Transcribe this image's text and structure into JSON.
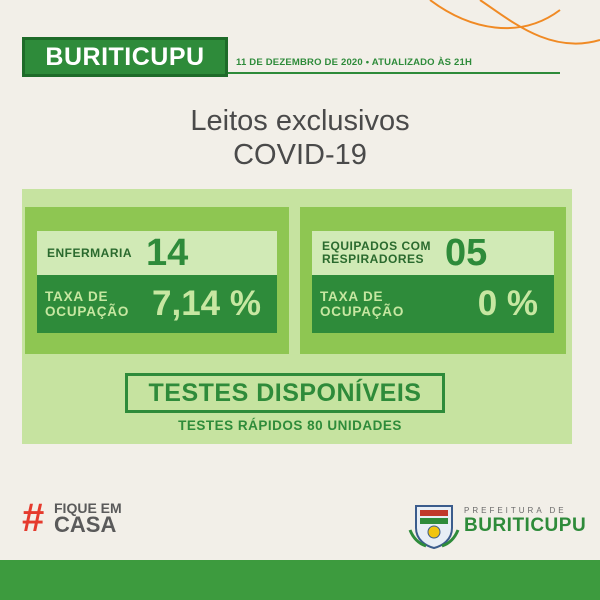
{
  "header": {
    "city": "BURITICUPU",
    "date_line": "11 DE DEZEMBRO DE 2020 • ATUALIZADO ÀS 21H"
  },
  "title": {
    "line1": "Leitos exclusivos",
    "line2": "COVID-19"
  },
  "cards": [
    {
      "label": "ENFERMARIA",
      "value": "14",
      "rate_label_line1": "TAXA DE",
      "rate_label_line2": "OCUPAÇÃO",
      "rate_value": "7,14 %"
    },
    {
      "label_line1": "EQUIPADOS COM",
      "label_line2": "RESPIRADORES",
      "value": "05",
      "rate_label_line1": "TAXA DE",
      "rate_label_line2": "OCUPAÇÃO",
      "rate_value": "0 %"
    }
  ],
  "tests": {
    "title": "TESTES DISPONÍVEIS",
    "subtitle": "TESTES RÁPIDOS 80 UNIDADES"
  },
  "hashtag": {
    "symbol": "#",
    "line1": "FIQUE EM",
    "line2": "CASA"
  },
  "logo": {
    "top": "PREFEITURA DE",
    "name": "BURITICUPU"
  },
  "colors": {
    "background": "#f2efe8",
    "brand_green": "#2e8b3a",
    "light_green": "#c6e3a0",
    "mid_green": "#8ec652",
    "accent_orange": "#f08a24",
    "hashtag_red": "#e53a2d"
  }
}
